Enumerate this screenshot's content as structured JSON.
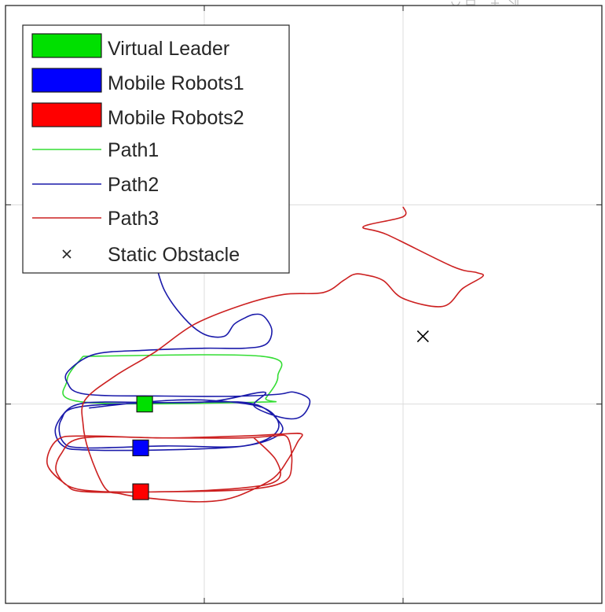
{
  "toolbar": {
    "icons": [
      "rotate-icon",
      "data-tips-icon",
      "pan-icon",
      "zoom-icon"
    ]
  },
  "chart_data": {
    "type": "line",
    "title": "",
    "xlabel": "",
    "ylabel": "",
    "xlim": [
      -2,
      1
    ],
    "ylim": [
      -1,
      2
    ],
    "grid": true,
    "tick_labels_visible": false,
    "legend": {
      "placement": "top-left",
      "entries": [
        {
          "label": "Virtual Leader",
          "kind": "marker-square",
          "color": "#00e000"
        },
        {
          "label": "Mobile Robots1",
          "kind": "marker-square",
          "color": "#0000ff"
        },
        {
          "label": "Mobile Robots2",
          "kind": "marker-square",
          "color": "#ff0000"
        },
        {
          "label": "Path1",
          "kind": "line",
          "color": "#33dd33"
        },
        {
          "label": "Path2",
          "kind": "line",
          "color": "#1a1aaa"
        },
        {
          "label": "Path3",
          "kind": "line",
          "color": "#cc2020"
        },
        {
          "label": "Static Obstacle",
          "kind": "x-marker",
          "color": "#000000"
        }
      ]
    },
    "series": [
      {
        "name": "Path1",
        "color": "#33dd33",
        "x": [
          -1.61,
          -0.71,
          -0.63,
          -0.69,
          -0.71,
          -1.61,
          -1.69,
          -1.61
        ],
        "y": [
          0.24,
          0.24,
          0.14,
          0.03,
          0.01,
          0.01,
          0.12,
          0.24
        ]
      },
      {
        "name": "Path2",
        "color": "#1a1aaa",
        "x": [
          -1.41,
          -1.43,
          -1.42,
          -1.4,
          -1.35,
          -1.28,
          -1.26,
          -1.25,
          -1.2,
          -1.1,
          -1.0,
          -0.9,
          -0.85,
          -0.8,
          -0.75,
          -0.7,
          -0.66,
          -0.69,
          -0.8,
          -1.0,
          -1.3,
          -1.55,
          -1.68,
          -1.69,
          -1.6,
          -1.2,
          -0.8,
          -0.62,
          -0.55,
          -0.47,
          -0.51,
          -0.6,
          -0.75,
          -0.7,
          -1.0,
          -1.5,
          -1.63,
          -1.7,
          -1.75,
          -1.71,
          -1.6,
          -1.2,
          -0.8,
          -0.62,
          -0.63,
          -0.75,
          -1.0,
          -1.6,
          -1.72,
          -1.71,
          -1.6,
          -1.2,
          -0.8,
          -0.63,
          -0.7,
          -1.0,
          -1.3,
          -1.58
        ],
        "y": [
          1.17,
          1.12,
          1.07,
          1.02,
          0.95,
          0.9,
          0.82,
          0.73,
          0.57,
          0.43,
          0.35,
          0.34,
          0.4,
          0.43,
          0.45,
          0.44,
          0.37,
          0.3,
          0.28,
          0.28,
          0.27,
          0.25,
          0.17,
          0.11,
          0.05,
          0.04,
          0.04,
          0.05,
          0.06,
          0.02,
          -0.06,
          -0.07,
          -0.01,
          0.06,
          0.01,
          0.01,
          0.0,
          -0.04,
          -0.13,
          -0.21,
          -0.23,
          -0.23,
          -0.21,
          -0.15,
          -0.08,
          0.0,
          0.01,
          -0.01,
          -0.08,
          -0.19,
          -0.22,
          -0.21,
          -0.21,
          -0.13,
          -0.02,
          0.02,
          0.01,
          -0.02
        ]
      },
      {
        "name": "Path3",
        "color": "#cc2020",
        "x": [
          0.0,
          0.0,
          -0.2,
          -0.08,
          0.25,
          0.37,
          0.4,
          0.3,
          0.2,
          0.0,
          -0.1,
          -0.2,
          -0.25,
          -0.3,
          -0.4,
          -0.6,
          -0.8,
          -1.05,
          -1.25,
          -1.45,
          -1.6,
          -1.61,
          -1.58,
          -1.5,
          -1.42,
          -1.3,
          -1.05,
          -0.9,
          -0.78,
          -0.65,
          -0.58,
          -0.53,
          -0.51,
          -0.6,
          -0.8,
          -1.2,
          -1.6,
          -1.74,
          -1.79,
          -1.7,
          -1.6,
          -1.2,
          -0.8,
          -0.6,
          -0.56,
          -0.58,
          -0.65,
          -0.8,
          -1.2,
          -1.61,
          -1.72,
          -1.74,
          -1.62,
          -1.2,
          -0.8,
          -0.63,
          -0.64,
          -0.75
        ],
        "y": [
          0.99,
          0.94,
          0.89,
          0.85,
          0.69,
          0.66,
          0.64,
          0.58,
          0.49,
          0.53,
          0.62,
          0.65,
          0.65,
          0.62,
          0.56,
          0.55,
          0.5,
          0.4,
          0.26,
          0.14,
          0.02,
          -0.1,
          -0.24,
          -0.42,
          -0.45,
          -0.47,
          -0.49,
          -0.48,
          -0.44,
          -0.37,
          -0.28,
          -0.19,
          -0.15,
          -0.15,
          -0.16,
          -0.17,
          -0.16,
          -0.18,
          -0.3,
          -0.4,
          -0.44,
          -0.44,
          -0.43,
          -0.39,
          -0.3,
          -0.17,
          -0.16,
          -0.17,
          -0.17,
          -0.17,
          -0.25,
          -0.35,
          -0.43,
          -0.44,
          -0.42,
          -0.38,
          -0.28,
          -0.17
        ]
      }
    ],
    "markers": [
      {
        "name": "Virtual Leader",
        "shape": "square",
        "color": "#00e000",
        "x": -1.3,
        "y": 0.0
      },
      {
        "name": "Mobile Robots1",
        "shape": "square",
        "color": "#0000ff",
        "x": -1.32,
        "y": -0.22
      },
      {
        "name": "Mobile Robots2",
        "shape": "square",
        "color": "#ff0000",
        "x": -1.32,
        "y": -0.44
      },
      {
        "name": "Static Obstacle",
        "shape": "x",
        "color": "#000000",
        "x": 0.1,
        "y": 0.34
      }
    ]
  }
}
